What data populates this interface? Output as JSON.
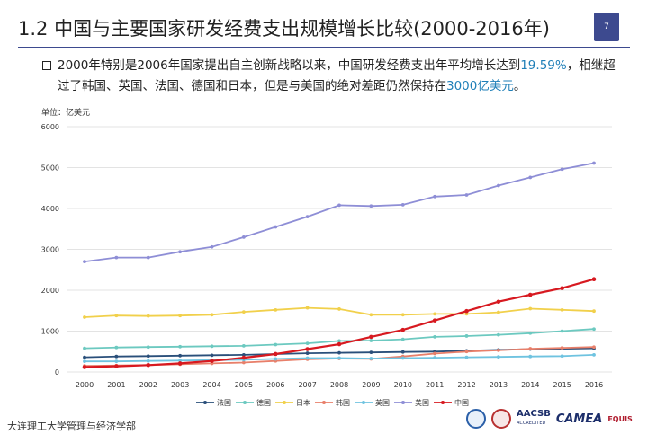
{
  "slide": {
    "title": "1.2  中国与主要国家研发经费支出规模增长比较(2000-2016年)",
    "page_number": "7",
    "bullet": {
      "part1": "2000年特别是2006年国家提出自主创新战略以来，中国研发经费支出年平均增长达到",
      "highlight1": "19.59%",
      "part2": "，相继超过了韩国、英国、法国、德国和日本，但是与美国的绝对差距仍然保持在",
      "highlight2": "3000亿美元",
      "part3": "。"
    },
    "footer": "大连理工大学管理与经济学部",
    "logos": {
      "aacsb": "AACSB",
      "aacsb_sub": "ACCREDITED",
      "camea": "CAMEA",
      "equis": "EQUIS"
    },
    "colors": {
      "accent": "#3d4a8f",
      "highlight": "#1f7fb8"
    }
  },
  "chart_data": {
    "type": "line",
    "unit_label": "单位：亿美元",
    "x": [
      "2000",
      "2001",
      "2002",
      "2003",
      "2004",
      "2005",
      "2006",
      "2007",
      "2008",
      "2009",
      "2010",
      "2011",
      "2012",
      "2013",
      "2014",
      "2015",
      "2016"
    ],
    "ylim": [
      0,
      6000
    ],
    "yticks": [
      0,
      1000,
      2000,
      3000,
      4000,
      5000,
      6000
    ],
    "grid": true,
    "legend_position": "bottom",
    "series": [
      {
        "name": "法国",
        "color": "#2a4f7a",
        "values": [
          360,
          380,
          390,
          400,
          410,
          420,
          440,
          460,
          470,
          480,
          490,
          500,
          520,
          540,
          560,
          570,
          580
        ]
      },
      {
        "name": "德国",
        "color": "#6cc9c0",
        "values": [
          580,
          600,
          610,
          620,
          630,
          640,
          670,
          700,
          760,
          770,
          800,
          860,
          880,
          910,
          950,
          1000,
          1050
        ]
      },
      {
        "name": "日本",
        "color": "#f1d04b",
        "values": [
          1340,
          1380,
          1370,
          1380,
          1400,
          1470,
          1520,
          1570,
          1540,
          1400,
          1400,
          1420,
          1420,
          1460,
          1550,
          1520,
          1490
        ]
      },
      {
        "name": "韩国",
        "color": "#e87f6a",
        "values": [
          150,
          160,
          170,
          190,
          210,
          230,
          270,
          310,
          330,
          320,
          380,
          450,
          500,
          530,
          570,
          590,
          610
        ]
      },
      {
        "name": "英国",
        "color": "#6fc3e0",
        "values": [
          260,
          260,
          270,
          280,
          290,
          300,
          320,
          340,
          340,
          330,
          340,
          350,
          360,
          370,
          380,
          390,
          420
        ]
      },
      {
        "name": "美国",
        "color": "#8e8ed6",
        "values": [
          2700,
          2800,
          2800,
          2940,
          3060,
          3300,
          3550,
          3800,
          4080,
          4060,
          4090,
          4290,
          4330,
          4560,
          4760,
          4960,
          5110
        ]
      },
      {
        "name": "中国",
        "color": "#d71920",
        "values": [
          120,
          140,
          170,
          210,
          270,
          350,
          440,
          560,
          680,
          860,
          1030,
          1260,
          1490,
          1720,
          1890,
          2050,
          2270
        ]
      }
    ]
  }
}
